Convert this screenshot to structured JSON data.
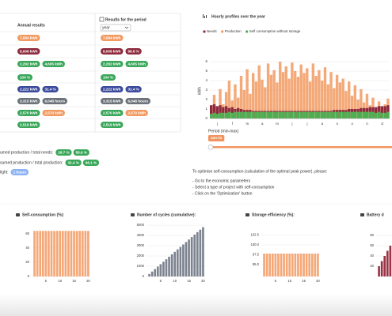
{
  "table": {
    "header": {
      "annual": "Annual results",
      "period": "Results for the period",
      "select": "year"
    },
    "rows": [
      {
        "annual": [
          {
            "text": "7,084 kWh",
            "color": "#f29a62"
          }
        ],
        "period": [
          {
            "text": "7,084 kWh",
            "color": "#f29a62"
          }
        ]
      },
      {
        "annual": [
          {
            "text": "8,008 kWh",
            "color": "#8e2a3c"
          }
        ],
        "period": [
          {
            "text": "8,008 kWh",
            "color": "#8e2a3c"
          },
          {
            "text": "88.6 %",
            "color": "#8e2a3c"
          }
        ]
      },
      {
        "annual": [
          {
            "text": "2,292 kWh",
            "color": "#3aa75a"
          },
          {
            "text": "4,605 kWh",
            "color": "#3aa75a"
          }
        ],
        "period": [
          {
            "text": "2,292 kWh",
            "color": "#3aa75a"
          },
          {
            "text": "4,605 kWh",
            "color": "#3aa75a"
          }
        ]
      },
      {
        "annual": [
          {
            "text": "104 %",
            "color": "#3aa75a"
          }
        ],
        "period": [
          {
            "text": "104 %",
            "color": "#3aa75a"
          }
        ]
      },
      {
        "annual": [
          {
            "text": "2,222 kWh",
            "color": "#3b4a9c"
          },
          {
            "text": "31.4 %",
            "color": "#3b4a9c"
          }
        ],
        "period": [
          {
            "text": "2,222 kWh",
            "color": "#3b4a9c"
          },
          {
            "text": "31.4 %",
            "color": "#3b4a9c"
          }
        ]
      },
      {
        "annual": [
          {
            "text": "3,315 kWh",
            "color": "#6c737a"
          },
          {
            "text": "6,048 hours",
            "color": "#6c737a"
          }
        ],
        "period": [
          {
            "text": "3,315 kWh",
            "color": "#6c737a"
          },
          {
            "text": "6,048 hours",
            "color": "#6c737a"
          }
        ]
      },
      {
        "annual": [
          {
            "text": "2,570 kWh",
            "color": "#3aa75a"
          },
          {
            "text": "2,570 kWh",
            "color": "#f29a62"
          }
        ],
        "period": [
          {
            "text": "2,570 kWh",
            "color": "#3aa75a"
          },
          {
            "text": "2,570 kWh",
            "color": "#f29a62"
          }
        ]
      },
      {
        "annual": [
          {
            "text": "2,519 kWh",
            "color": "#3aa75a"
          }
        ],
        "period": [
          {
            "text": "2,519 kWh",
            "color": "#3aa75a"
          }
        ]
      }
    ]
  },
  "ratios": [
    {
      "label": "umed production / total needs:",
      "badges": [
        {
          "text": "28.7 %",
          "color": "#3aa75a"
        },
        {
          "text": "58.6 %",
          "color": "#3aa75a"
        }
      ]
    },
    {
      "label": "sumed production / total production:",
      "badges": [
        {
          "text": "32.4 %",
          "color": "#3aa75a"
        },
        {
          "text": "66.1 %",
          "color": "#3aa75a"
        }
      ]
    },
    {
      "label": "light:",
      "badges": [
        {
          "text": "1 hours",
          "color": "#8fb4f2"
        }
      ]
    }
  ],
  "hourly_chart": {
    "type": "bar",
    "title": "Hourly profiles over the year",
    "y_label": "kWh",
    "categories": [
      "j",
      "f",
      "m",
      "a",
      "m",
      "j",
      "j",
      "a",
      "s",
      "o",
      "n",
      "d"
    ],
    "ylim": [
      0,
      6
    ],
    "yticks": [
      0,
      1,
      2,
      3,
      4,
      5,
      6
    ],
    "grid": true,
    "series": [
      {
        "name": "Needs",
        "color": "#8e2a3c",
        "values": [
          1.4,
          1.5,
          1.3,
          1.4,
          1.2,
          1.3,
          1.1,
          1.2,
          1.0,
          1.1,
          1.0,
          0.9,
          0.9,
          0.9,
          0.8,
          0.8,
          0.8,
          0.8,
          0.8,
          0.8,
          0.8,
          0.8,
          0.8,
          0.8,
          0.8,
          0.8,
          0.8,
          0.8,
          0.8,
          0.8,
          0.8,
          0.8,
          0.8,
          0.8,
          0.8,
          0.8,
          0.8,
          0.8,
          0.8,
          0.8,
          0.8,
          0.9,
          0.9,
          0.9,
          0.9,
          0.9,
          1.0,
          1.0,
          1.0,
          1.0,
          1.1,
          1.1,
          1.1,
          1.2,
          1.2,
          1.2,
          1.3,
          1.3,
          1.3,
          1.4
        ]
      },
      {
        "name": "Production",
        "color": "#f29a62",
        "values": [
          1.2,
          2.5,
          0.8,
          3.1,
          1.5,
          2.8,
          4.0,
          1.9,
          3.6,
          2.2,
          4.5,
          3.0,
          5.2,
          2.6,
          4.8,
          3.9,
          5.6,
          4.1,
          3.3,
          5.8,
          4.6,
          5.1,
          3.8,
          6.0,
          4.9,
          5.5,
          4.2,
          5.9,
          5.0,
          4.4,
          5.7,
          4.8,
          5.3,
          3.9,
          5.8,
          4.5,
          5.1,
          4.0,
          5.4,
          3.6,
          4.9,
          3.2,
          4.6,
          3.8,
          4.2,
          2.9,
          3.9,
          2.4,
          3.5,
          2.0,
          3.1,
          1.7,
          2.6,
          1.4,
          2.2,
          1.1,
          1.8,
          0.9,
          1.5,
          2.1
        ]
      },
      {
        "name": "Self consumption without storage",
        "color": "#4cb050",
        "values": [
          0.5,
          0.6,
          0.5,
          0.6,
          0.6,
          0.6,
          0.7,
          0.6,
          0.7,
          0.7,
          0.7,
          0.7,
          0.7,
          0.7,
          0.7,
          0.7,
          0.7,
          0.7,
          0.7,
          0.7,
          0.7,
          0.7,
          0.7,
          0.7,
          0.7,
          0.7,
          0.7,
          0.7,
          0.7,
          0.7,
          0.7,
          0.7,
          0.7,
          0.7,
          0.7,
          0.7,
          0.7,
          0.7,
          0.7,
          0.7,
          0.7,
          0.7,
          0.7,
          0.7,
          0.7,
          0.7,
          0.7,
          0.7,
          0.7,
          0.7,
          0.7,
          0.7,
          0.7,
          0.7,
          0.7,
          0.6,
          0.7,
          0.6,
          0.6,
          0.7
        ]
      }
    ],
    "draw_order": [
      1,
      0,
      2
    ],
    "period_label": "Period (min-max)",
    "period_value": "Jan 01",
    "slider_color": "#f0955f"
  },
  "note": [
    "To optimise self-consumption (calculation of the optimal peak power), please:",
    "- Go to the economic parameters",
    "- Select a type of project with self-consumption",
    "- Click on the 'Optimisation' button"
  ],
  "charts": [
    {
      "type": "bar",
      "title": "Self-consumption (%):",
      "color": "#f4a878",
      "x": [
        1,
        2,
        3,
        4,
        5,
        6,
        7,
        8,
        9,
        10,
        11,
        12,
        13,
        14,
        15,
        16,
        17,
        18,
        19,
        20
      ],
      "xlim": [
        0,
        21
      ],
      "xticks": [
        5,
        10,
        15,
        20
      ],
      "ylim": [
        0,
        72
      ],
      "yticks": [
        0,
        20,
        40,
        60
      ],
      "values": [
        64,
        64,
        64,
        64,
        64,
        64,
        64,
        64,
        64,
        64,
        64,
        64,
        64,
        64,
        64,
        64,
        64,
        64,
        64,
        64
      ]
    },
    {
      "type": "bar",
      "title": "Number of cycles (cumulative):",
      "color": "#7d8490",
      "x": [
        1,
        2,
        3,
        4,
        5,
        6,
        7,
        8,
        9,
        10,
        11,
        12,
        13,
        14,
        15,
        16,
        17,
        18,
        19,
        20
      ],
      "xlim": [
        0,
        21
      ],
      "xticks": [
        5,
        10,
        15,
        20
      ],
      "ylim": [
        0,
        5000
      ],
      "yticks": [
        0,
        1000,
        2000,
        3000,
        4000,
        5000
      ],
      "values": [
        240,
        480,
        720,
        960,
        1200,
        1440,
        1680,
        1920,
        2160,
        2400,
        2640,
        2880,
        3120,
        3360,
        3600,
        3840,
        4080,
        4320,
        4560,
        4800
      ]
    },
    {
      "type": "bar",
      "title": "Storage efficiency (%):",
      "color": "#f4a878",
      "x": [
        1,
        2,
        3,
        4,
        5,
        6,
        7,
        8,
        9,
        10,
        11,
        12,
        13,
        14,
        15,
        16,
        17,
        18,
        19,
        20
      ],
      "xlim": [
        0,
        21
      ],
      "xticks": [
        5,
        10,
        15,
        20
      ],
      "ylim": [
        92,
        105
      ],
      "yticks": [
        {
          "value": 95,
          "label": "95.0"
        },
        {
          "value": 97.5,
          "label": "97.5"
        },
        {
          "value": 100,
          "label": "100.0"
        },
        {
          "value": 102.5,
          "label": "102.5"
        }
      ],
      "values": [
        97.8,
        97.8,
        97.8,
        97.8,
        97.8,
        97.8,
        97.8,
        97.8,
        97.8,
        97.8,
        97.8,
        97.8,
        97.8,
        97.8,
        97.8,
        97.8,
        97.8,
        97.8,
        97.8,
        97.8
      ]
    },
    {
      "type": "bar",
      "title": "Battery d",
      "color": "#9a3346",
      "x": [
        1,
        2,
        3,
        4,
        5
      ],
      "xlim": [
        0,
        21
      ],
      "ylim": [
        0,
        100
      ],
      "yticks": [
        20,
        40,
        60,
        80
      ],
      "values": [
        20,
        30,
        40,
        50,
        60
      ]
    }
  ]
}
